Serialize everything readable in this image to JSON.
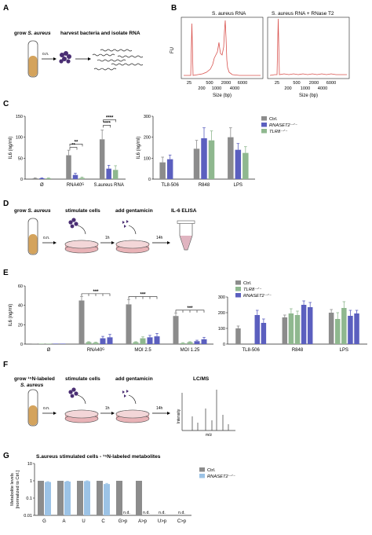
{
  "colors": {
    "ctrl": "#8c8c8c",
    "rnaset2": "#5b5fbf",
    "tlr8": "#8fb88f",
    "light_blue": "#9cc3e6",
    "trace": "#d9534f",
    "tube_fill": "#d4a35c",
    "dish": "#e9b3b7",
    "purple": "#4a2e73"
  },
  "icons": [
    "tube-icon",
    "bacteria-icon",
    "rna-icon",
    "petri-dish-icon",
    "eppendorf-icon",
    "ms-spectrum-icon",
    "arrow-icon"
  ],
  "panels": {
    "A": {
      "letter": "A",
      "grow_prefix": "grow ",
      "grow_species": "S. aureus",
      "harvest": "harvest bacteria and isolate RNA",
      "on": "o.n."
    },
    "B": {
      "letter": "B",
      "left_title": "S. aureus RNA",
      "right_title": "S. aureus RNA + RNase T2",
      "ylabel": "FU",
      "xlabel": "Size (bp)",
      "left_ticks": [
        "25",
        "500",
        "2000",
        "6000"
      ],
      "left_ticks2": [
        "200",
        "1000",
        "4000"
      ],
      "right_ticks": [
        "25",
        "500",
        "2000",
        "6000"
      ],
      "right_ticks2": [
        "200",
        "1000",
        "4000"
      ]
    },
    "C": {
      "letter": "C"
    },
    "D": {
      "letter": "D",
      "grow_prefix": "grow ",
      "grow_species": "S. aureus",
      "stimulate": "stimulate cells",
      "gentamicin": "add gentamicin",
      "elisa": "IL-6 ELISA",
      "on": "o.n.",
      "h1": "1h",
      "h14": "14h"
    },
    "E": {
      "letter": "E"
    },
    "F": {
      "letter": "F",
      "grow_line1": "grow ¹⁵N-labeled",
      "grow_line2": "S. aureus",
      "stimulate": "stimulate cells",
      "gentamicin": "add gentamicin",
      "lcms": "LC/MS",
      "on": "o.n.",
      "h1": "1h",
      "h14": "14h",
      "intensity": "Intensity",
      "mz": "m/z"
    },
    "G": {
      "letter": "G"
    }
  },
  "chart_data": [
    {
      "id": "C-left",
      "type": "bar",
      "ylabel": "IL6 (ng/ml)",
      "ylim": [
        0,
        150
      ],
      "yticks": [
        0,
        50,
        100,
        150
      ],
      "categories": [
        "Ø",
        "RNA40ᴳ",
        "S.aureus RNA"
      ],
      "series": [
        {
          "name": "Ctrl.",
          "values": [
            2,
            57,
            95
          ],
          "errors": [
            1,
            12,
            22
          ]
        },
        {
          "name": "RNASET2⁻ᐟ⁻",
          "values": [
            2,
            10,
            25
          ],
          "errors": [
            1,
            4,
            8
          ]
        },
        {
          "name": "TLR8⁻ᐟ⁻",
          "values": [
            2,
            3,
            22
          ],
          "errors": [
            1,
            2,
            10
          ]
        }
      ],
      "significance": [
        "**",
        "**",
        "****",
        "****"
      ]
    },
    {
      "id": "C-right",
      "type": "bar",
      "ylabel": "IL6 (ng/ml)",
      "ylim": [
        0,
        300
      ],
      "yticks": [
        0,
        100,
        200,
        300
      ],
      "categories": [
        "TL8-506",
        "R848",
        "LPS"
      ],
      "series": [
        {
          "name": "Ctrl.",
          "values": [
            80,
            145,
            200
          ],
          "errors": [
            25,
            40,
            45
          ]
        },
        {
          "name": "RNASET2⁻ᐟ⁻",
          "values": [
            95,
            195,
            140
          ],
          "errors": [
            20,
            50,
            30
          ]
        },
        {
          "name": "TLR8⁻ᐟ⁻",
          "values": [
            null,
            185,
            125
          ],
          "errors": [
            null,
            45,
            30
          ]
        }
      ],
      "legend": [
        "Ctrl.",
        "RNASET2⁻ᐟ⁻",
        "TLR8⁻ᐟ⁻"
      ]
    },
    {
      "id": "E-left",
      "type": "bar",
      "ylabel": "IL6 (ng/ml)",
      "ylim": [
        0,
        60
      ],
      "yticks": [
        0,
        20,
        40,
        60
      ],
      "categories": [
        "Ø",
        "RNA40ᴳ",
        "MOI 2.5",
        "MOI 1.25"
      ],
      "series": [
        {
          "name": "Ctrl.",
          "values": [
            0,
            45,
            41,
            29
          ],
          "errors": [
            0,
            4,
            5,
            3
          ]
        },
        {
          "name": "TLR8⁻ᐟ⁻",
          "values": [
            0,
            2,
            2,
            1
          ],
          "errors": [
            0,
            0.5,
            0.5,
            0.5
          ]
        },
        {
          "name": "TLR8⁻ᐟ⁻",
          "values": [
            0,
            1.5,
            6,
            2
          ],
          "errors": [
            0,
            0.5,
            1.5,
            0.5
          ]
        },
        {
          "name": "RNASET2⁻ᐟ⁻",
          "values": [
            0,
            6,
            7,
            3
          ],
          "errors": [
            0,
            2,
            2,
            1
          ]
        },
        {
          "name": "RNASET2⁻ᐟ⁻",
          "values": [
            0,
            7,
            8,
            5
          ],
          "errors": [
            0,
            3,
            3,
            2
          ]
        }
      ],
      "significance": [
        "***",
        "***",
        "***"
      ]
    },
    {
      "id": "E-right",
      "type": "bar",
      "ylabel": "",
      "ylim": [
        0,
        300
      ],
      "yticks": [
        0,
        100,
        200,
        300
      ],
      "categories": [
        "TL8-506",
        "R848",
        "LPS"
      ],
      "series": [
        {
          "name": "Ctrl.",
          "values": [
            100,
            170,
            200
          ],
          "errors": [
            15,
            15,
            20
          ]
        },
        {
          "name": "TLR8⁻ᐟ⁻",
          "values": [
            null,
            195,
            160
          ],
          "errors": [
            null,
            30,
            40
          ]
        },
        {
          "name": "TLR8⁻ᐟ⁻",
          "values": [
            null,
            185,
            230
          ],
          "errors": [
            null,
            25,
            40
          ]
        },
        {
          "name": "RNASET2⁻ᐟ⁻",
          "values": [
            185,
            250,
            180
          ],
          "errors": [
            30,
            25,
            35
          ]
        },
        {
          "name": "RNASET2⁻ᐟ⁻",
          "values": [
            135,
            235,
            195
          ],
          "errors": [
            25,
            30,
            20
          ]
        }
      ],
      "legend": [
        "Ctrl.",
        "TLR8⁻ᐟ⁻",
        "RNASET2⁻ᐟ⁻"
      ]
    },
    {
      "id": "G",
      "type": "bar",
      "title": "S.aureus stimulated cells - ¹⁵N-labeled metabolites",
      "ylabel_line1": "Metabolite levels",
      "ylabel_line2": "[normalized to Ctrl.]",
      "yscale": "log",
      "ylim": [
        0.01,
        10
      ],
      "yticks": [
        "0.01",
        "0.1",
        "1",
        "10"
      ],
      "categories": [
        "G",
        "A",
        "U",
        "C",
        "G>p",
        "A>p",
        "U>p",
        "C>p"
      ],
      "series": [
        {
          "name": "Ctrl.",
          "values": [
            1,
            1,
            1,
            1,
            1,
            1,
            null,
            null
          ]
        },
        {
          "name": "RNASET2⁻ᐟ⁻",
          "values": [
            0.85,
            0.9,
            0.95,
            0.65,
            null,
            null,
            null,
            null
          ],
          "errors": [
            0.05,
            0.05,
            0.05,
            0.06,
            null,
            null,
            null,
            null
          ]
        }
      ],
      "na_label": "n.d.",
      "legend": [
        "Ctrl.",
        "RNASET2⁻ᐟ⁻"
      ]
    }
  ]
}
